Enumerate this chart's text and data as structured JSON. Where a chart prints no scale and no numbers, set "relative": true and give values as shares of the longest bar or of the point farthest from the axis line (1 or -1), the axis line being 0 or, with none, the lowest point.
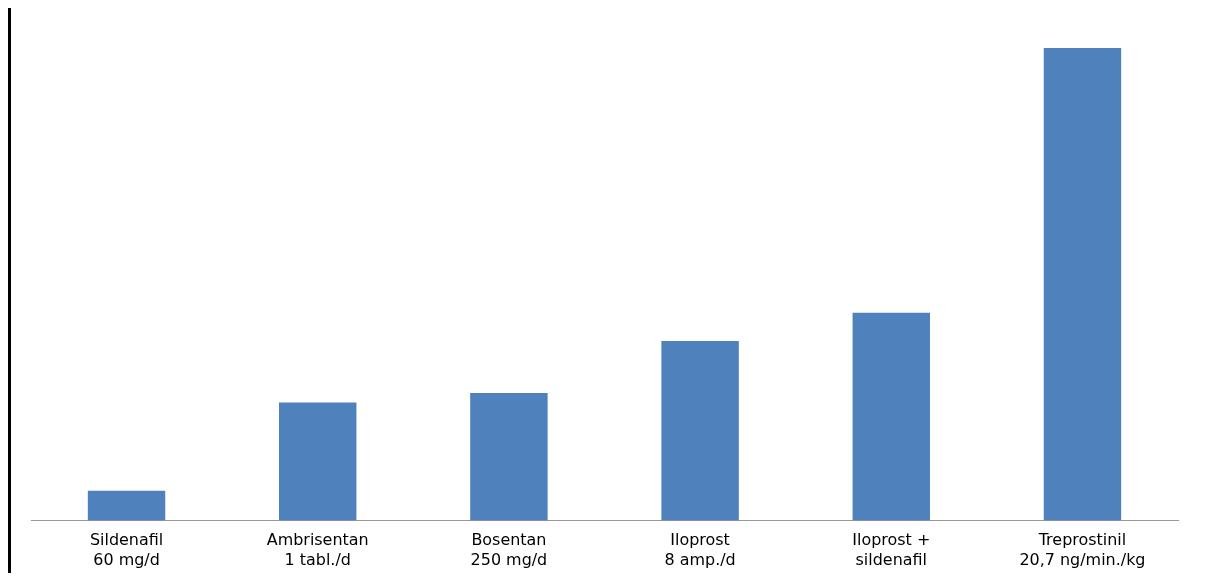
{
  "chart_data": {
    "type": "bar",
    "relative": true,
    "categories": [
      "Sildenafil\n60 mg/d",
      "Ambrisentan\n1 tabl./d",
      "Bosentan\n250 mg/d",
      "Iloprost\n8 amp./d",
      "Iloprost +\nsildenafil",
      "Treprostinil\n20,7 ng/min./kg"
    ],
    "values": [
      0.063,
      0.25,
      0.27,
      0.38,
      0.44,
      1
    ],
    "color": "#4f81bd",
    "grid": false,
    "legend": false
  }
}
